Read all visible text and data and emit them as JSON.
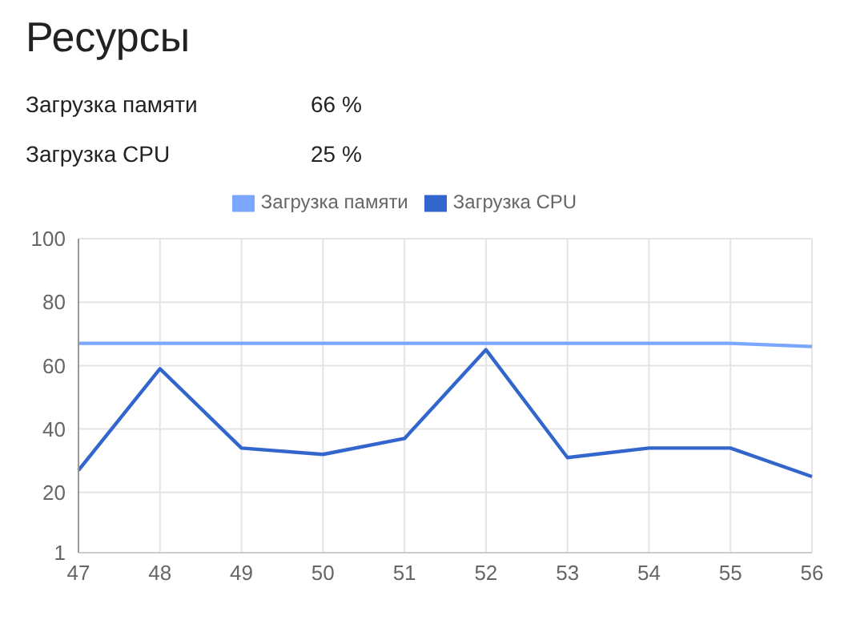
{
  "chart_data": {
    "type": "line",
    "title": "Ресурсы",
    "annotations": [
      "Загрузка памяти",
      "66 %",
      "Загрузка CPU",
      "25 %"
    ],
    "categories": [
      "47",
      "48",
      "49",
      "50",
      "51",
      "52",
      "53",
      "54",
      "55",
      "56"
    ],
    "series": [
      {
        "name": "Загрузка памяти",
        "color": "#7aa7ff",
        "values": [
          67,
          67,
          67,
          67,
          67,
          67,
          67,
          67,
          67,
          66
        ]
      },
      {
        "name": "Загрузка CPU",
        "color": "#3366cc",
        "values": [
          27,
          59,
          34,
          32,
          37,
          65,
          31,
          34,
          34,
          25
        ]
      }
    ],
    "ylim": [
      1,
      100
    ],
    "yticks": [
      1,
      20,
      40,
      60,
      80,
      100
    ],
    "grid": true,
    "legend": "top",
    "marker": "none",
    "line_style": "solid"
  }
}
